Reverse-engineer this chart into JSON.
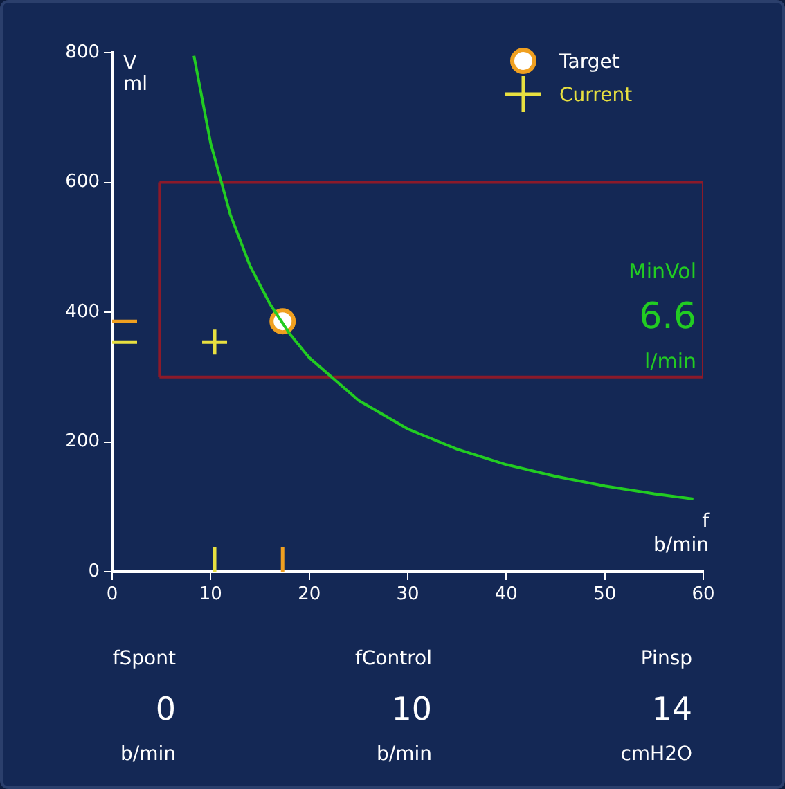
{
  "chart_data": {
    "type": "line",
    "xlabel": "f\nb/min",
    "ylabel": "V\nml",
    "xlim": [
      0,
      60
    ],
    "xticks": [
      0,
      10,
      20,
      30,
      40,
      50,
      60
    ],
    "ylim": [
      0,
      800
    ],
    "yticks": [
      0,
      200,
      400,
      600,
      800
    ],
    "grid": false,
    "legend": "top right",
    "series": [
      {
        "type": "line",
        "marker": "none",
        "color": "#22cc22",
        "x": [
          8.3,
          10,
          12,
          14,
          16,
          18,
          20,
          25,
          30,
          35,
          40,
          45,
          50,
          55,
          59
        ],
        "values": [
          795,
          660,
          550,
          471,
          413,
          367,
          330,
          264,
          220,
          189,
          165,
          147,
          132,
          120,
          112
        ]
      },
      {
        "type": "line",
        "marker": "none",
        "color": "#8b1a2a",
        "x": [
          4.8,
          60
        ],
        "values": [
          600,
          600
        ]
      },
      {
        "type": "line",
        "marker": "none",
        "color": "#8b1a2a",
        "x": [
          4.8,
          60
        ],
        "values": [
          300,
          300
        ]
      },
      {
        "type": "line",
        "marker": "none",
        "color": "#8b1a2a",
        "x": [
          4.8,
          4.8
        ],
        "values": [
          300,
          600
        ]
      },
      {
        "type": "line",
        "marker": "none",
        "color": "#8b1a2a",
        "x": [
          60,
          60
        ],
        "values": [
          300,
          600
        ]
      },
      {
        "name": "Target",
        "type": "scatter",
        "marker": "circle",
        "color": "#f0a020",
        "x": [
          17.3
        ],
        "values": [
          386
        ]
      },
      {
        "name": "Current",
        "type": "scatter",
        "marker": "cross",
        "color": "#e8e040",
        "x": [
          10.4
        ],
        "values": [
          354
        ]
      }
    ],
    "annotations": [
      "MinVol",
      "6.6",
      "l/min",
      "fSpont",
      "0",
      "b/min",
      "fControl",
      "10",
      "b/min",
      "Pinsp",
      "14",
      "cmH2O"
    ]
  }
}
